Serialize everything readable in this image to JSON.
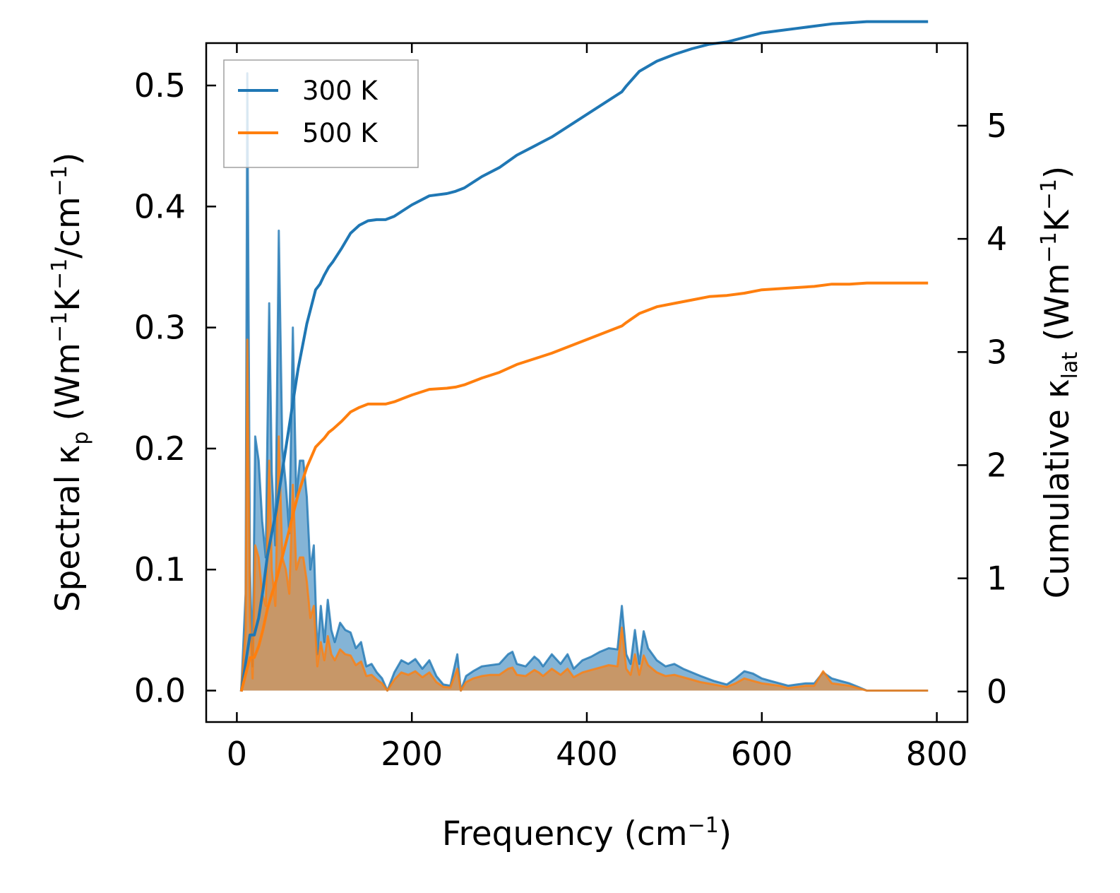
{
  "chart_data": {
    "type": "area+line",
    "x_axis": {
      "label": "Frequency (cm",
      "label_sup": "−1",
      "label_tail": ")",
      "range": [
        -35,
        835
      ],
      "ticks": [
        0,
        200,
        400,
        600,
        800
      ],
      "tick_labels": [
        "0",
        "200",
        "400",
        "600",
        "800"
      ]
    },
    "y_axis_left": {
      "label_parts": [
        "Spectral κ",
        "p",
        " (Wm",
        "−1",
        "K",
        "−1",
        "/cm",
        "−1",
        ")"
      ],
      "range": [
        -0.026,
        0.535
      ],
      "ticks": [
        0.0,
        0.1,
        0.2,
        0.3,
        0.4,
        0.5
      ],
      "tick_labels": [
        "0.0",
        "0.1",
        "0.2",
        "0.3",
        "0.4",
        "0.5"
      ]
    },
    "y_axis_right": {
      "label_parts": [
        "Cumulative κ",
        "lat",
        " (Wm",
        "−1",
        "K",
        "−1",
        ")"
      ],
      "range": [
        -0.27,
        5.73
      ],
      "ticks": [
        0,
        1,
        2,
        3,
        4,
        5
      ],
      "tick_labels": [
        "0",
        "1",
        "2",
        "3",
        "4",
        "5"
      ]
    },
    "legend": {
      "position": "top-left",
      "entries": [
        {
          "label": "300 K",
          "color": "#1f77b4"
        },
        {
          "label": "500 K",
          "color": "#ff7f0e"
        }
      ]
    },
    "spectral_series": [
      {
        "name": "300 K",
        "axis": "left",
        "color": "#1f77b4",
        "x": [
          5,
          10,
          12,
          15,
          18,
          21,
          25,
          29,
          33,
          37,
          40,
          44,
          48,
          52,
          56,
          60,
          64,
          68,
          72,
          76,
          80,
          84,
          88,
          92,
          96,
          100,
          104,
          108,
          112,
          118,
          124,
          130,
          136,
          142,
          148,
          154,
          160,
          166,
          172,
          180,
          188,
          196,
          204,
          212,
          220,
          228,
          236,
          244,
          252,
          256,
          262,
          270,
          280,
          290,
          300,
          310,
          315,
          320,
          330,
          340,
          345,
          350,
          360,
          370,
          378,
          385,
          395,
          405,
          415,
          425,
          435,
          440,
          445,
          450,
          455,
          460,
          465,
          470,
          480,
          490,
          500,
          510,
          520,
          530,
          545,
          560,
          570,
          580,
          590,
          600,
          610,
          620,
          630,
          640,
          650,
          660,
          670,
          680,
          690,
          700,
          710,
          720,
          730,
          750,
          770,
          790
        ],
        "y": [
          0.0,
          0.08,
          0.51,
          0.1,
          0.02,
          0.21,
          0.19,
          0.14,
          0.11,
          0.32,
          0.18,
          0.12,
          0.38,
          0.2,
          0.17,
          0.13,
          0.3,
          0.16,
          0.19,
          0.19,
          0.16,
          0.1,
          0.12,
          0.03,
          0.07,
          0.04,
          0.075,
          0.05,
          0.04,
          0.056,
          0.05,
          0.048,
          0.035,
          0.04,
          0.02,
          0.022,
          0.015,
          0.01,
          0.0,
          0.015,
          0.025,
          0.022,
          0.026,
          0.018,
          0.025,
          0.012,
          0.005,
          0.004,
          0.03,
          0.0,
          0.012,
          0.016,
          0.02,
          0.021,
          0.022,
          0.03,
          0.032,
          0.022,
          0.02,
          0.028,
          0.025,
          0.02,
          0.03,
          0.022,
          0.03,
          0.018,
          0.025,
          0.028,
          0.032,
          0.035,
          0.034,
          0.07,
          0.03,
          0.022,
          0.05,
          0.022,
          0.049,
          0.035,
          0.025,
          0.02,
          0.022,
          0.018,
          0.015,
          0.012,
          0.008,
          0.005,
          0.01,
          0.016,
          0.014,
          0.01,
          0.008,
          0.006,
          0.004,
          0.005,
          0.006,
          0.006,
          0.015,
          0.01,
          0.008,
          0.006,
          0.003,
          0.0,
          0.0,
          0.0,
          0.0,
          0.0
        ]
      },
      {
        "name": "500 K",
        "axis": "left",
        "color": "#ff7f0e",
        "x": [
          5,
          10,
          12,
          15,
          18,
          21,
          25,
          29,
          33,
          37,
          40,
          44,
          48,
          52,
          56,
          60,
          64,
          68,
          72,
          76,
          80,
          84,
          88,
          92,
          96,
          100,
          104,
          108,
          112,
          118,
          124,
          130,
          136,
          142,
          148,
          154,
          160,
          166,
          172,
          180,
          188,
          196,
          204,
          212,
          220,
          228,
          236,
          244,
          252,
          256,
          262,
          270,
          280,
          290,
          300,
          310,
          315,
          320,
          330,
          340,
          345,
          350,
          360,
          370,
          378,
          385,
          395,
          405,
          415,
          425,
          435,
          440,
          445,
          450,
          455,
          460,
          465,
          470,
          480,
          490,
          500,
          510,
          520,
          530,
          545,
          560,
          570,
          580,
          590,
          600,
          610,
          620,
          630,
          640,
          650,
          660,
          670,
          680,
          690,
          700,
          710,
          720,
          730,
          750,
          770,
          790
        ],
        "y": [
          0.0,
          0.05,
          0.29,
          0.06,
          0.01,
          0.12,
          0.11,
          0.08,
          0.07,
          0.19,
          0.1,
          0.07,
          0.21,
          0.11,
          0.1,
          0.08,
          0.17,
          0.1,
          0.11,
          0.11,
          0.09,
          0.06,
          0.07,
          0.02,
          0.04,
          0.025,
          0.045,
          0.03,
          0.025,
          0.034,
          0.03,
          0.029,
          0.021,
          0.024,
          0.012,
          0.013,
          0.009,
          0.006,
          0.0,
          0.009,
          0.015,
          0.013,
          0.016,
          0.011,
          0.015,
          0.007,
          0.003,
          0.0025,
          0.018,
          0.0,
          0.007,
          0.01,
          0.012,
          0.013,
          0.013,
          0.018,
          0.019,
          0.013,
          0.012,
          0.017,
          0.015,
          0.012,
          0.018,
          0.013,
          0.018,
          0.011,
          0.015,
          0.017,
          0.019,
          0.021,
          0.02,
          0.052,
          0.018,
          0.013,
          0.03,
          0.013,
          0.029,
          0.021,
          0.015,
          0.012,
          0.013,
          0.011,
          0.009,
          0.007,
          0.005,
          0.003,
          0.006,
          0.01,
          0.008,
          0.006,
          0.005,
          0.004,
          0.002,
          0.003,
          0.004,
          0.004,
          0.016,
          0.006,
          0.005,
          0.004,
          0.002,
          0.0,
          0.0,
          0.0,
          0.0,
          0.0
        ]
      }
    ],
    "cumulative_series": [
      {
        "name": "300 K",
        "axis": "right",
        "color": "#1f77b4",
        "x": [
          5,
          10,
          15,
          20,
          25,
          30,
          35,
          40,
          45,
          50,
          55,
          60,
          65,
          70,
          75,
          80,
          85,
          90,
          95,
          100,
          105,
          110,
          120,
          130,
          140,
          150,
          160,
          170,
          180,
          190,
          200,
          220,
          240,
          250,
          260,
          280,
          300,
          320,
          340,
          360,
          380,
          400,
          420,
          440,
          445,
          460,
          480,
          500,
          520,
          540,
          560,
          580,
          600,
          620,
          640,
          660,
          680,
          700,
          720,
          740,
          760,
          790
        ],
        "y": [
          0.0,
          0.25,
          0.5,
          0.5,
          0.65,
          0.9,
          1.2,
          1.4,
          1.6,
          1.85,
          2.1,
          2.35,
          2.6,
          2.85,
          3.05,
          3.25,
          3.4,
          3.55,
          3.6,
          3.68,
          3.75,
          3.8,
          3.92,
          4.05,
          4.12,
          4.16,
          4.17,
          4.17,
          4.2,
          4.25,
          4.3,
          4.38,
          4.4,
          4.42,
          4.45,
          4.55,
          4.63,
          4.74,
          4.82,
          4.9,
          5.0,
          5.1,
          5.2,
          5.3,
          5.35,
          5.48,
          5.57,
          5.63,
          5.68,
          5.72,
          5.74,
          5.78,
          5.82,
          5.84,
          5.86,
          5.88,
          5.9,
          5.91,
          5.92,
          5.92,
          5.92,
          5.92
        ]
      },
      {
        "name": "500 K",
        "axis": "right",
        "color": "#ff7f0e",
        "x": [
          5,
          10,
          15,
          20,
          25,
          30,
          35,
          40,
          45,
          50,
          55,
          60,
          65,
          70,
          75,
          80,
          85,
          90,
          95,
          100,
          105,
          110,
          120,
          130,
          140,
          150,
          160,
          170,
          180,
          190,
          200,
          220,
          240,
          250,
          260,
          280,
          300,
          320,
          340,
          360,
          380,
          400,
          420,
          440,
          445,
          460,
          480,
          500,
          520,
          540,
          560,
          580,
          600,
          620,
          640,
          660,
          680,
          700,
          720,
          740,
          760,
          790
        ],
        "y": [
          0.0,
          0.15,
          0.3,
          0.3,
          0.4,
          0.55,
          0.73,
          0.86,
          0.98,
          1.13,
          1.28,
          1.43,
          1.59,
          1.74,
          1.86,
          1.98,
          2.07,
          2.16,
          2.2,
          2.24,
          2.29,
          2.32,
          2.39,
          2.47,
          2.51,
          2.54,
          2.54,
          2.54,
          2.56,
          2.59,
          2.62,
          2.67,
          2.68,
          2.69,
          2.71,
          2.77,
          2.82,
          2.89,
          2.94,
          2.99,
          3.05,
          3.11,
          3.17,
          3.23,
          3.26,
          3.34,
          3.4,
          3.43,
          3.46,
          3.49,
          3.5,
          3.52,
          3.55,
          3.56,
          3.57,
          3.58,
          3.6,
          3.6,
          3.61,
          3.61,
          3.61,
          3.61
        ]
      }
    ]
  }
}
